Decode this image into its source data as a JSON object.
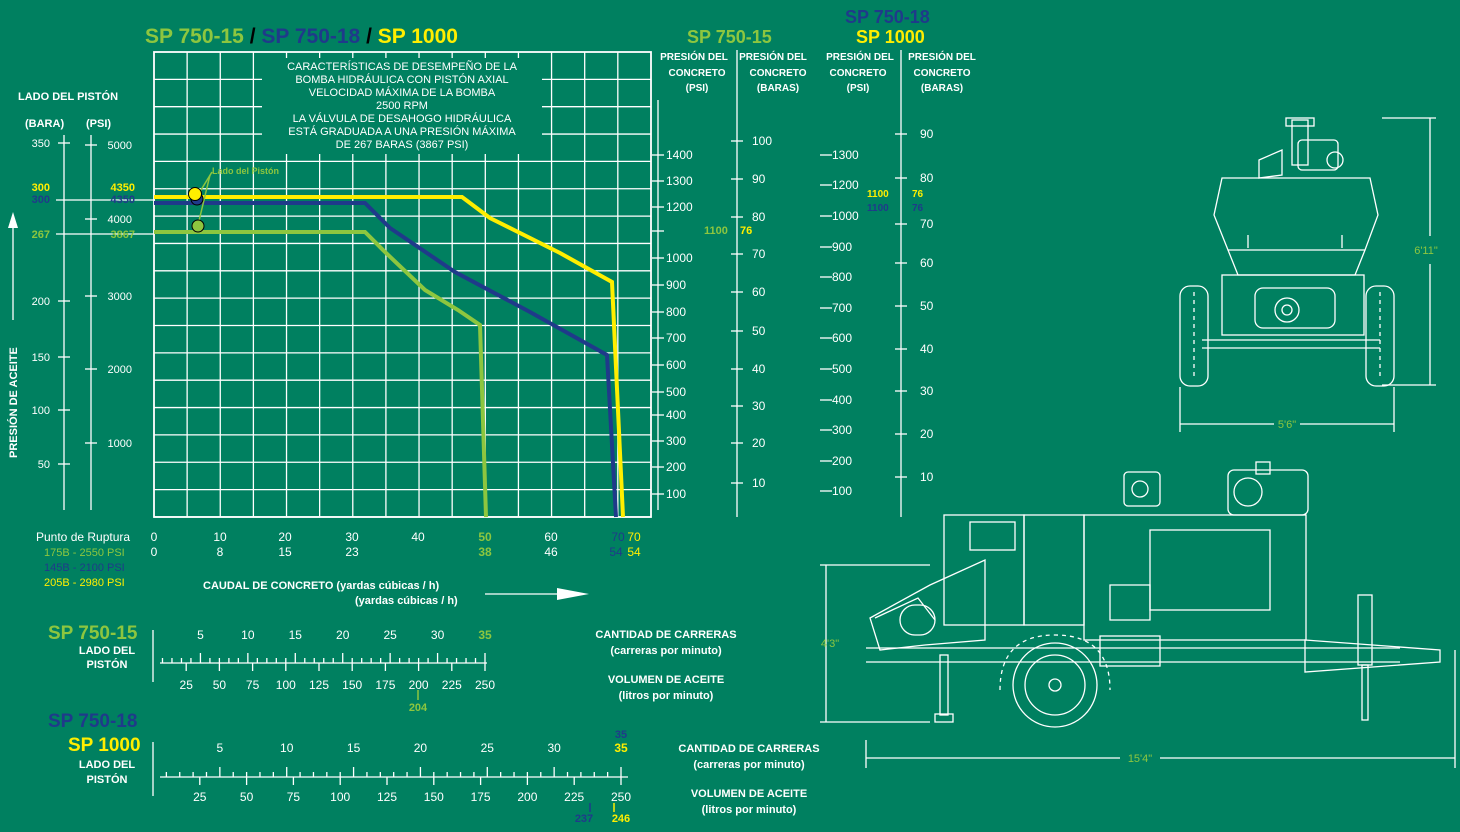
{
  "colors": {
    "background": "#008060",
    "white": "#ffffff",
    "sp750_15": "#8dc63f",
    "sp750_18": "#1f3a8a",
    "sp1000": "#ffee00"
  },
  "header": {
    "model_a": "SP 750-15",
    "sep1": " / ",
    "model_b": "SP 750-18",
    "sep2": " / ",
    "model_c": "SP 1000"
  },
  "description": [
    "CARACTERÍSTICAS DE DESEMPEÑO DE LA",
    "BOMBA HIDRÁULICA CON PISTÓN AXIAL",
    "VELOCIDAD MÁXIMA DE LA BOMBA",
    "2500 RPM",
    "LA VÁLVULA DE DESAHOGO HIDRÁULICA",
    "ESTÁ GRADUADA A UNA PRESIÓN MÁXIMA",
    "DE 267 BARAS (3867 PSI)"
  ],
  "piston_label": "Lado del Pistón",
  "left_axis": {
    "title": "LADO DEL PISTÓN",
    "bar_unit": "(BARA)",
    "psi_unit": "(PSI)",
    "side_label": "PRESIÓN DE ACEITE",
    "bar_ticks": [
      "350",
      "200",
      "150",
      "100",
      "50"
    ],
    "psi_ticks": [
      "5000",
      "4000",
      "3000",
      "2000",
      "1000"
    ],
    "marks": {
      "bar_300_green": "300",
      "bar_300_blue": "300",
      "bar_267": "267",
      "psi_4350_yellow": "4350",
      "psi_4350_blue": "4350",
      "psi_3867": "3867"
    }
  },
  "bottom_axis": {
    "rupture_label": "Punto de Ruptura",
    "row1": [
      "0",
      "10",
      "20",
      "30",
      "40",
      "50",
      "60",
      "70",
      "70"
    ],
    "row2": [
      "0",
      "8",
      "15",
      "23",
      "38",
      "46",
      "54",
      "54"
    ],
    "bold_a": "50",
    "bold_b": "38",
    "rupture": [
      "175B - 2550 PSI",
      "145B - 2100 PSI",
      "205B - 2980 PSI"
    ],
    "flow_label": "CAUDAL DE CONCRETO (yardas cúbicas / h)",
    "flow_label2": "(yardas cúbicas / h)"
  },
  "concrete_axes_a": {
    "model": "SP 750-15",
    "psi_header": [
      "PRESIÓN DEL",
      "CONCRETO",
      "(PSI)"
    ],
    "bar_header": [
      "PRESIÓN DEL",
      "CONCRETO",
      "(BARAS)"
    ],
    "psi_ticks": [
      "1400",
      "1300",
      "1200",
      "1000",
      "900",
      "800",
      "700",
      "600",
      "500",
      "400",
      "300",
      "200",
      "100"
    ],
    "bar_ticks": [
      "100",
      "90",
      "80",
      "70",
      "60",
      "50",
      "40",
      "30",
      "20",
      "10"
    ],
    "mark_psi": "1100",
    "mark_bar": "76"
  },
  "concrete_axes_b": {
    "model_top": "SP 750-18",
    "model_bottom": "SP 1000",
    "psi_header": [
      "PRESIÓN DEL",
      "CONCRETO",
      "(PSI)"
    ],
    "bar_header": [
      "PRESIÓN DEL",
      "CONCRETO",
      "(BARAS)"
    ],
    "psi_ticks": [
      "1300",
      "1200",
      "1000",
      "900",
      "800",
      "700",
      "600",
      "500",
      "400",
      "300",
      "200",
      "100"
    ],
    "bar_ticks": [
      "90",
      "80",
      "70",
      "60",
      "50",
      "40",
      "30",
      "20",
      "10"
    ],
    "mark_psi_yellow": "1100",
    "mark_psi_blue": "1100",
    "mark_bar_yellow": "76",
    "mark_bar_blue": "76"
  },
  "scale_a": {
    "model": "SP 750-15",
    "side": [
      "LADO DEL",
      "PISTÓN"
    ],
    "strokes": [
      "5",
      "10",
      "15",
      "20",
      "25",
      "30",
      "35"
    ],
    "oil": [
      "25",
      "50",
      "75",
      "100",
      "125",
      "150",
      "175",
      "200",
      "225",
      "250"
    ],
    "oil_mark": "204",
    "strokes_title": "CANTIDAD DE CARRERAS",
    "strokes_unit": "(carreras por minuto)",
    "oil_title": "VOLUMEN DE ACEITE",
    "oil_unit": "(litros por minuto)"
  },
  "scale_b": {
    "model_top": "SP 750-18",
    "model_bottom": "SP 1000",
    "side": [
      "LADO DEL",
      "PISTÓN"
    ],
    "strokes": [
      "5",
      "10",
      "15",
      "20",
      "25",
      "30",
      "35"
    ],
    "stroke_mark_blue": "35",
    "oil": [
      "25",
      "50",
      "75",
      "100",
      "125",
      "150",
      "175",
      "200",
      "225",
      "250"
    ],
    "oil_mark_blue": "237",
    "oil_mark_yellow": "246",
    "strokes_title": "CANTIDAD DE CARRERAS",
    "strokes_unit": "(carreras por minuto)",
    "oil_title": "VOLUMEN DE ACEITE",
    "oil_unit": "(litros por minuto)"
  },
  "dimensions": {
    "height": "6'11\"",
    "width": "5'6\"",
    "side_height": "4'3\"",
    "length": "15'4\""
  }
}
